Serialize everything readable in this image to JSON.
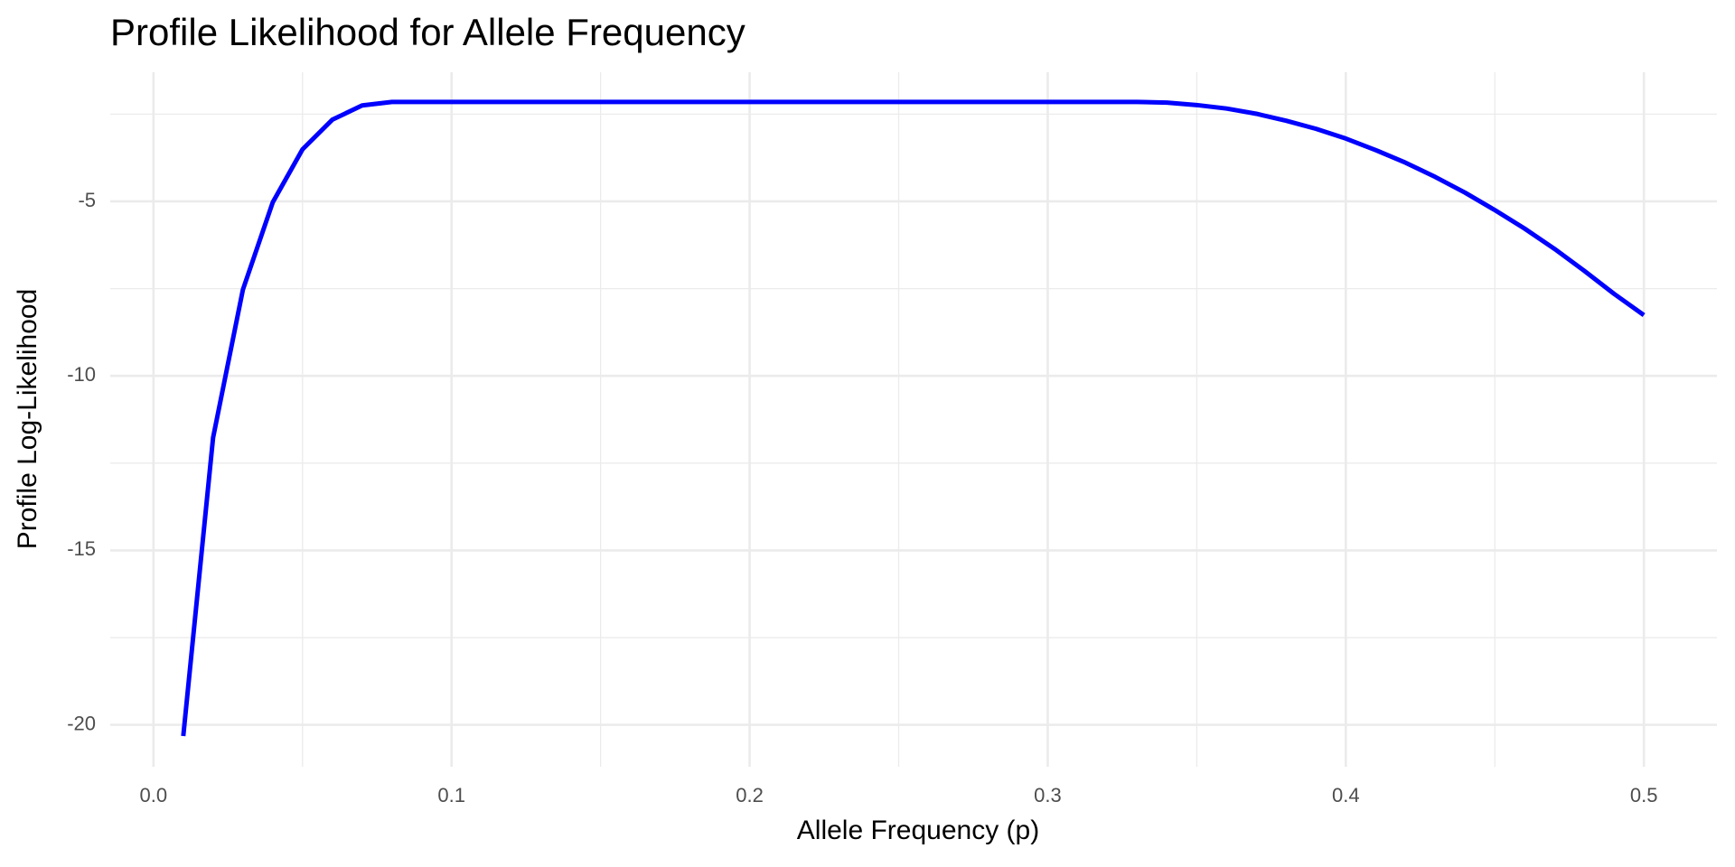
{
  "chart_data": {
    "type": "line",
    "title": "Profile Likelihood for Allele Frequency",
    "x_label": "Allele Frequency (p)",
    "y_label": "Profile Log-Likelihood",
    "x": [
      0.01,
      0.02,
      0.03,
      0.04,
      0.05,
      0.06,
      0.07,
      0.08,
      0.09,
      0.1,
      0.11,
      0.12,
      0.13,
      0.14,
      0.15,
      0.16,
      0.17,
      0.18,
      0.19,
      0.2,
      0.21,
      0.22,
      0.23,
      0.24,
      0.25,
      0.26,
      0.27,
      0.28,
      0.29,
      0.3,
      0.31,
      0.32,
      0.33,
      0.34,
      0.35,
      0.36,
      0.37,
      0.38,
      0.39,
      0.4,
      0.41,
      0.42,
      0.43,
      0.44,
      0.45,
      0.46,
      0.47,
      0.48,
      0.49,
      0.5
    ],
    "series": [
      {
        "color": "#0000ff",
        "values": [
          -20.32,
          -11.77,
          -7.53,
          -5.03,
          -3.51,
          -2.66,
          -2.25,
          -2.15,
          -2.15,
          -2.15,
          -2.15,
          -2.15,
          -2.15,
          -2.15,
          -2.15,
          -2.15,
          -2.15,
          -2.15,
          -2.15,
          -2.15,
          -2.15,
          -2.15,
          -2.15,
          -2.15,
          -2.15,
          -2.15,
          -2.15,
          -2.15,
          -2.15,
          -2.15,
          -2.15,
          -2.15,
          -2.15,
          -2.17,
          -2.24,
          -2.34,
          -2.49,
          -2.69,
          -2.92,
          -3.2,
          -3.53,
          -3.89,
          -4.3,
          -4.75,
          -5.25,
          -5.78,
          -6.36,
          -6.99,
          -7.65,
          -8.26
        ]
      }
    ],
    "xlim": [
      -0.0145,
      0.5245
    ],
    "ylim": [
      -21.2,
      -1.3
    ],
    "xticks": [
      {
        "value": 0,
        "label": "0.0"
      },
      0.1,
      0.2,
      0.3,
      0.4,
      0.5
    ],
    "yticks": [
      -20,
      -15,
      -10,
      -5
    ],
    "xminor": [
      0.05,
      0.15,
      0.25,
      0.35,
      0.45
    ],
    "yminor": [
      -17.5,
      -12.5,
      -7.5,
      -2.5
    ],
    "grid": true
  }
}
